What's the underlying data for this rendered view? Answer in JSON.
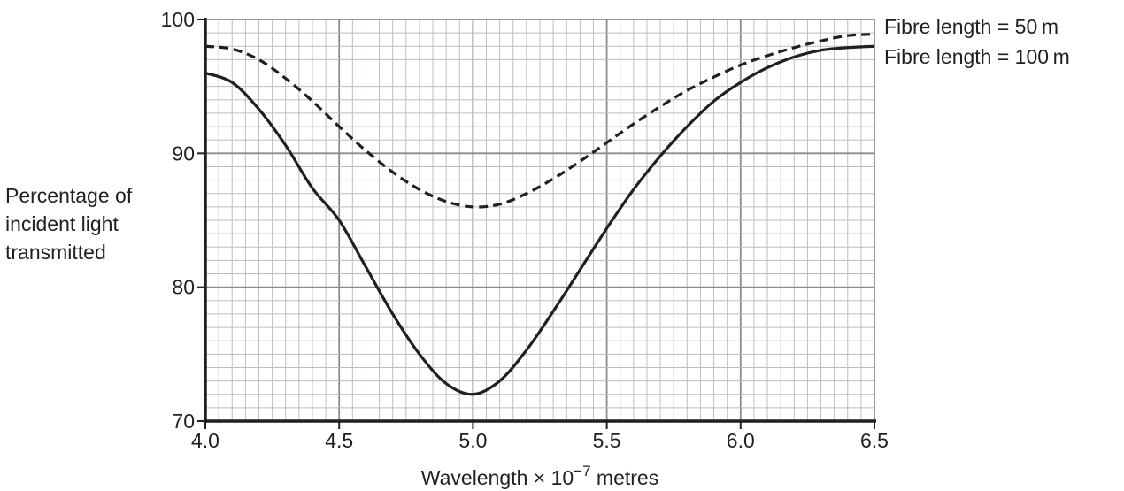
{
  "chart_data": {
    "type": "line",
    "xlabel": {
      "main": "Wavelength × 10",
      "exp": "−7",
      "unit": " metres"
    },
    "ylabel": [
      "Percentage of",
      "incident light",
      "transmitted"
    ],
    "xlim": [
      4.0,
      6.5
    ],
    "ylim": [
      70,
      100
    ],
    "x_ticks": [
      "4.0",
      "4.5",
      "5.0",
      "5.5",
      "6.0",
      "6.5"
    ],
    "y_ticks": [
      "70",
      "80",
      "90",
      "100"
    ],
    "grid": true,
    "legend_position": "right of curve ends",
    "series": [
      {
        "name": "Fibre length = 50 m",
        "style": "dashed",
        "color": "#231f20",
        "points": [
          [
            4.0,
            98.0
          ],
          [
            4.1,
            97.8
          ],
          [
            4.2,
            97.0
          ],
          [
            4.3,
            95.6
          ],
          [
            4.4,
            93.9
          ],
          [
            4.5,
            92.0
          ],
          [
            4.6,
            90.2
          ],
          [
            4.7,
            88.6
          ],
          [
            4.8,
            87.3
          ],
          [
            4.9,
            86.4
          ],
          [
            5.0,
            86.0
          ],
          [
            5.1,
            86.2
          ],
          [
            5.2,
            87.0
          ],
          [
            5.3,
            88.1
          ],
          [
            5.4,
            89.4
          ],
          [
            5.5,
            90.8
          ],
          [
            5.6,
            92.2
          ],
          [
            5.7,
            93.5
          ],
          [
            5.8,
            94.7
          ],
          [
            5.9,
            95.7
          ],
          [
            6.0,
            96.6
          ],
          [
            6.1,
            97.3
          ],
          [
            6.2,
            97.9
          ],
          [
            6.3,
            98.4
          ],
          [
            6.4,
            98.8
          ],
          [
            6.5,
            98.9
          ]
        ]
      },
      {
        "name": "Fibre length = 100 m",
        "style": "solid",
        "color": "#231f20",
        "points": [
          [
            4.0,
            96.0
          ],
          [
            4.1,
            95.3
          ],
          [
            4.2,
            93.3
          ],
          [
            4.3,
            90.6
          ],
          [
            4.4,
            87.4
          ],
          [
            4.5,
            85.0
          ],
          [
            4.6,
            81.5
          ],
          [
            4.7,
            78.0
          ],
          [
            4.8,
            75.0
          ],
          [
            4.9,
            72.8
          ],
          [
            5.0,
            72.0
          ],
          [
            5.1,
            73.0
          ],
          [
            5.2,
            75.3
          ],
          [
            5.3,
            78.2
          ],
          [
            5.4,
            81.3
          ],
          [
            5.5,
            84.4
          ],
          [
            5.6,
            87.3
          ],
          [
            5.7,
            89.8
          ],
          [
            5.8,
            92.0
          ],
          [
            5.9,
            93.9
          ],
          [
            6.0,
            95.3
          ],
          [
            6.1,
            96.4
          ],
          [
            6.2,
            97.2
          ],
          [
            6.3,
            97.7
          ],
          [
            6.4,
            97.9
          ],
          [
            6.5,
            98.0
          ]
        ]
      }
    ]
  }
}
